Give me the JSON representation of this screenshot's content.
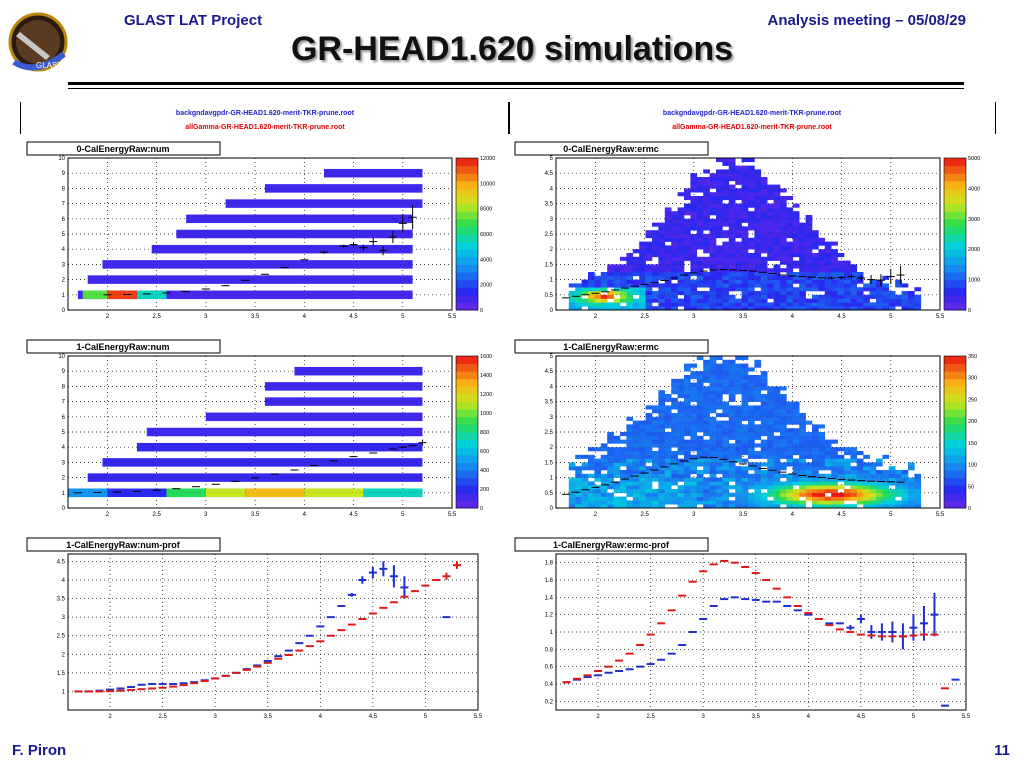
{
  "header": {
    "project": "GLAST LAT Project",
    "meeting": "Analysis meeting – 05/08/29",
    "title": "GR-HEAD1.620 simulations"
  },
  "footer": {
    "author": "F. Piron",
    "page": "11"
  },
  "logo": {
    "text": "GLAST"
  },
  "files": {
    "left_blue": "backgndavgpdr-GR-HEAD1.620-merit-TKR-prune.root",
    "left_red": "allGamma-GR-HEAD1.620-merit-TKR-prune.root",
    "right_blue": "backgndavgpdr-GR-HEAD1.620-merit-TKR-prune.root",
    "right_red": "allGamma-GR-HEAD1.620-merit-TKR-prune.root"
  },
  "colors": {
    "blue": "#1f2fd0",
    "red": "#e01818",
    "black": "#000000"
  },
  "chart_data": [
    {
      "type": "heatmap",
      "title": "0-CalEnergyRaw:num",
      "xlim": [
        1.6,
        5.5
      ],
      "ylim": [
        0,
        10
      ],
      "xticks": [
        "2",
        "2.5",
        "3",
        "3.5",
        "4",
        "4.5",
        "5",
        "5.5"
      ],
      "yticks": [
        "0",
        "1",
        "2",
        "3",
        "4",
        "5",
        "6",
        "7",
        "8",
        "9",
        "10"
      ],
      "z_ticks": [
        "0",
        "2000",
        "4000",
        "6000",
        "8000",
        "10000",
        "12000"
      ],
      "zmax": 12000,
      "rows": [
        {
          "y": 1,
          "x0": 1.7,
          "x1": 5.1,
          "level": 0.07,
          "hot": [
            [
              1.75,
              2.0,
              0.6
            ],
            [
              2.0,
              2.3,
              0.95
            ],
            [
              2.3,
              2.6,
              0.45
            ]
          ]
        },
        {
          "y": 2,
          "x0": 1.8,
          "x1": 5.1,
          "level": 0.08
        },
        {
          "y": 3,
          "x0": 1.95,
          "x1": 5.1,
          "level": 0.08
        },
        {
          "y": 4,
          "x0": 2.45,
          "x1": 5.1,
          "level": 0.08
        },
        {
          "y": 5,
          "x0": 2.7,
          "x1": 5.1,
          "level": 0.08
        },
        {
          "y": 6,
          "x0": 2.8,
          "x1": 5.1,
          "level": 0.08
        },
        {
          "y": 7,
          "x0": 3.2,
          "x1": 5.2,
          "level": 0.08
        },
        {
          "y": 8,
          "x0": 3.6,
          "x1": 5.2,
          "level": 0.08
        },
        {
          "y": 9,
          "x0": 4.2,
          "x1": 5.2,
          "level": 0.08
        }
      ],
      "profile": {
        "x": [
          2.0,
          2.2,
          2.4,
          2.6,
          2.8,
          3.0,
          3.2,
          3.4,
          3.6,
          3.8,
          4.0,
          4.2,
          4.4,
          4.5,
          4.6,
          4.7,
          4.8,
          4.9,
          5.0,
          5.1
        ],
        "y": [
          1.0,
          1.02,
          1.06,
          1.12,
          1.22,
          1.38,
          1.6,
          1.95,
          2.35,
          2.8,
          3.3,
          3.8,
          4.2,
          4.3,
          4.1,
          4.5,
          3.9,
          4.8,
          5.7,
          6.1
        ],
        "err": [
          0,
          0,
          0,
          0,
          0,
          0,
          0,
          0,
          0,
          0,
          0,
          0.1,
          0.1,
          0.15,
          0.2,
          0.25,
          0.3,
          0.4,
          0.6,
          0.8
        ]
      }
    },
    {
      "type": "heatmap",
      "title": "0-CalEnergyRaw:ermc",
      "xlim": [
        1.6,
        5.5
      ],
      "ylim": [
        0,
        5
      ],
      "xticks": [
        "2",
        "2.5",
        "3",
        "3.5",
        "4",
        "4.5",
        "5",
        "5.5"
      ],
      "yticks": [
        "0",
        "0.5",
        "1",
        "1.5",
        "2",
        "2.5",
        "3",
        "3.5",
        "4",
        "4.5",
        "5"
      ],
      "z_ticks": [
        "0",
        "1000",
        "2000",
        "3000",
        "4000",
        "5000"
      ],
      "zmax": 5000,
      "profile": {
        "x": [
          1.7,
          1.8,
          1.9,
          2.0,
          2.1,
          2.2,
          2.3,
          2.4,
          2.5,
          2.6,
          2.7,
          2.8,
          2.9,
          3.0,
          3.1,
          3.2,
          3.3,
          3.4,
          3.5,
          3.6,
          3.7,
          3.8,
          3.9,
          4.0,
          4.1,
          4.2,
          4.3,
          4.4,
          4.5,
          4.6,
          4.7,
          4.8,
          4.9,
          5.0,
          5.1
        ],
        "y": [
          0.4,
          0.45,
          0.5,
          0.55,
          0.6,
          0.66,
          0.72,
          0.78,
          0.84,
          0.9,
          0.97,
          1.05,
          1.15,
          1.22,
          1.28,
          1.32,
          1.33,
          1.32,
          1.3,
          1.28,
          1.24,
          1.2,
          1.15,
          1.12,
          1.1,
          1.08,
          1.06,
          1.05,
          1.07,
          1.1,
          1.05,
          1.0,
          0.98,
          1.1,
          1.15
        ],
        "err": [
          0,
          0,
          0,
          0,
          0,
          0,
          0,
          0,
          0,
          0,
          0,
          0,
          0,
          0,
          0,
          0,
          0,
          0,
          0,
          0,
          0,
          0,
          0,
          0,
          0,
          0,
          0,
          0.05,
          0.05,
          0.08,
          0.1,
          0.15,
          0.2,
          0.25,
          0.3
        ]
      }
    },
    {
      "type": "heatmap",
      "title": "1-CalEnergyRaw:num",
      "xlim": [
        1.6,
        5.5
      ],
      "ylim": [
        0,
        10
      ],
      "xticks": [
        "2",
        "2.5",
        "3",
        "3.5",
        "4",
        "4.5",
        "5",
        "5.5"
      ],
      "yticks": [
        "0",
        "1",
        "2",
        "3",
        "4",
        "5",
        "6",
        "7",
        "8",
        "9",
        "10"
      ],
      "z_ticks": [
        "0",
        "200",
        "400",
        "600",
        "800",
        "1000",
        "1200",
        "1400",
        "1600"
      ],
      "zmax": 1600,
      "rows": [
        {
          "y": 1,
          "x0": 1.6,
          "x1": 5.2,
          "level": 0.12,
          "hot": [
            [
              1.6,
              2.0,
              0.3
            ],
            [
              2.6,
              3.0,
              0.55
            ],
            [
              3.0,
              3.4,
              0.7
            ],
            [
              3.4,
              4.0,
              0.8
            ],
            [
              4.0,
              4.6,
              0.7
            ],
            [
              4.6,
              5.2,
              0.45
            ]
          ]
        },
        {
          "y": 2,
          "x0": 1.8,
          "x1": 5.2,
          "level": 0.1
        },
        {
          "y": 3,
          "x0": 1.95,
          "x1": 5.2,
          "level": 0.1
        },
        {
          "y": 4,
          "x0": 2.3,
          "x1": 5.2,
          "level": 0.1
        },
        {
          "y": 5,
          "x0": 2.4,
          "x1": 5.2,
          "level": 0.08
        },
        {
          "y": 6,
          "x0": 3.0,
          "x1": 5.2,
          "level": 0.08
        },
        {
          "y": 7,
          "x0": 3.6,
          "x1": 5.2,
          "level": 0.08
        },
        {
          "y": 8,
          "x0": 3.6,
          "x1": 5.2,
          "level": 0.08
        },
        {
          "y": 9,
          "x0": 3.9,
          "x1": 5.2,
          "level": 0.08
        }
      ],
      "profile": {
        "x": [
          1.7,
          1.9,
          2.1,
          2.3,
          2.5,
          2.7,
          2.9,
          3.1,
          3.3,
          3.5,
          3.7,
          3.9,
          4.1,
          4.3,
          4.5,
          4.7,
          4.9,
          5.0,
          5.1,
          5.2
        ],
        "y": [
          1.0,
          1.02,
          1.05,
          1.1,
          1.17,
          1.27,
          1.4,
          1.56,
          1.75,
          1.98,
          2.23,
          2.5,
          2.8,
          3.1,
          3.38,
          3.62,
          3.88,
          4.0,
          4.1,
          4.3
        ],
        "err": [
          0,
          0,
          0,
          0,
          0,
          0,
          0,
          0,
          0,
          0,
          0,
          0,
          0,
          0,
          0,
          0,
          0,
          0,
          0,
          0.2
        ]
      }
    },
    {
      "type": "heatmap",
      "title": "1-CalEnergyRaw:ermc",
      "xlim": [
        1.6,
        5.5
      ],
      "ylim": [
        0,
        5
      ],
      "xticks": [
        "2",
        "2.5",
        "3",
        "3.5",
        "4",
        "4.5",
        "5",
        "5.5"
      ],
      "yticks": [
        "0",
        "0.5",
        "1",
        "1.5",
        "2",
        "2.5",
        "3",
        "3.5",
        "4",
        "4.5",
        "5"
      ],
      "z_ticks": [
        "0",
        "50",
        "100",
        "150",
        "200",
        "250",
        "300",
        "350"
      ],
      "zmax": 350,
      "profile": {
        "x": [
          1.7,
          1.8,
          1.9,
          2.0,
          2.1,
          2.2,
          2.3,
          2.4,
          2.5,
          2.6,
          2.7,
          2.8,
          2.9,
          3.0,
          3.1,
          3.2,
          3.3,
          3.4,
          3.5,
          3.6,
          3.7,
          3.8,
          3.9,
          4.0,
          4.1,
          4.2,
          4.3,
          4.4,
          4.5,
          4.6,
          4.7,
          4.8,
          4.9,
          5.0,
          5.1
        ],
        "y": [
          0.45,
          0.52,
          0.6,
          0.68,
          0.76,
          0.85,
          0.95,
          1.05,
          1.15,
          1.25,
          1.35,
          1.45,
          1.55,
          1.62,
          1.67,
          1.66,
          1.6,
          1.52,
          1.45,
          1.38,
          1.3,
          1.24,
          1.18,
          1.12,
          1.07,
          1.03,
          1.0,
          0.97,
          0.94,
          0.92,
          0.9,
          0.88,
          0.87,
          0.86,
          0.85
        ],
        "err": [
          0,
          0,
          0,
          0,
          0,
          0,
          0,
          0,
          0,
          0,
          0,
          0,
          0,
          0,
          0,
          0,
          0,
          0,
          0,
          0,
          0,
          0,
          0,
          0,
          0,
          0,
          0,
          0,
          0,
          0,
          0,
          0,
          0,
          0,
          0
        ]
      }
    },
    {
      "type": "line",
      "title": "1-CalEnergyRaw:num-prof",
      "xlim": [
        1.6,
        5.5
      ],
      "ylim": [
        0.5,
        4.7
      ],
      "xticks": [
        "2",
        "2.5",
        "3",
        "3.5",
        "4",
        "4.5",
        "5",
        "5.5"
      ],
      "yticks": [
        "1",
        "1.5",
        "2",
        "2.5",
        "3",
        "3.5",
        "4",
        "4.5"
      ],
      "series": [
        {
          "color": "blue",
          "x": [
            1.7,
            1.8,
            1.9,
            2.0,
            2.1,
            2.2,
            2.3,
            2.4,
            2.5,
            2.6,
            2.7,
            2.8,
            2.9,
            3.0,
            3.1,
            3.2,
            3.3,
            3.4,
            3.5,
            3.6,
            3.7,
            3.8,
            3.9,
            4.0,
            4.1,
            4.2,
            4.3,
            4.4,
            4.5,
            4.6,
            4.7,
            4.8,
            5.2
          ],
          "y": [
            1.0,
            1.0,
            1.02,
            1.05,
            1.08,
            1.12,
            1.18,
            1.2,
            1.2,
            1.2,
            1.22,
            1.25,
            1.3,
            1.35,
            1.42,
            1.5,
            1.6,
            1.7,
            1.82,
            1.95,
            2.1,
            2.3,
            2.5,
            2.75,
            3.0,
            3.3,
            3.6,
            4.0,
            4.2,
            4.3,
            4.1,
            3.8,
            3.0
          ],
          "err": [
            0,
            0,
            0,
            0,
            0,
            0,
            0,
            0,
            0,
            0,
            0,
            0,
            0,
            0,
            0,
            0,
            0,
            0,
            0,
            0,
            0,
            0,
            0,
            0,
            0,
            0,
            0.05,
            0.1,
            0.15,
            0.2,
            0.3,
            0.3,
            0
          ]
        },
        {
          "color": "red",
          "x": [
            1.7,
            1.8,
            1.9,
            2.0,
            2.1,
            2.2,
            2.3,
            2.4,
            2.5,
            2.6,
            2.7,
            2.8,
            2.9,
            3.0,
            3.1,
            3.2,
            3.3,
            3.4,
            3.5,
            3.6,
            3.7,
            3.8,
            3.9,
            4.0,
            4.1,
            4.2,
            4.3,
            4.4,
            4.5,
            4.6,
            4.7,
            4.8,
            4.9,
            5.0,
            5.1,
            5.2,
            5.3
          ],
          "y": [
            1.0,
            1.0,
            1.0,
            1.01,
            1.02,
            1.04,
            1.06,
            1.08,
            1.1,
            1.13,
            1.17,
            1.22,
            1.28,
            1.35,
            1.42,
            1.5,
            1.58,
            1.67,
            1.77,
            1.88,
            1.98,
            2.1,
            2.22,
            2.35,
            2.5,
            2.65,
            2.8,
            2.95,
            3.1,
            3.25,
            3.4,
            3.55,
            3.7,
            3.85,
            4.0,
            4.1,
            4.4
          ],
          "err": [
            0,
            0,
            0,
            0,
            0,
            0,
            0,
            0,
            0,
            0,
            0,
            0,
            0,
            0,
            0,
            0,
            0,
            0,
            0,
            0,
            0,
            0,
            0,
            0,
            0,
            0,
            0,
            0,
            0,
            0,
            0,
            0,
            0,
            0,
            0,
            0.1,
            0.1
          ]
        }
      ]
    },
    {
      "type": "line",
      "title": "1-CalEnergyRaw:ermc-prof",
      "xlim": [
        1.6,
        5.5
      ],
      "ylim": [
        0.1,
        1.9
      ],
      "xticks": [
        "2",
        "2.5",
        "3",
        "3.5",
        "4",
        "4.5",
        "5",
        "5.5"
      ],
      "yticks": [
        "0.2",
        "0.4",
        "0.6",
        "0.8",
        "1",
        "1.2",
        "1.4",
        "1.6",
        "1.8"
      ],
      "series": [
        {
          "color": "blue",
          "x": [
            1.7,
            1.8,
            1.9,
            2.0,
            2.1,
            2.2,
            2.3,
            2.4,
            2.5,
            2.6,
            2.7,
            2.8,
            2.9,
            3.0,
            3.1,
            3.2,
            3.3,
            3.4,
            3.5,
            3.6,
            3.7,
            3.8,
            3.9,
            4.0,
            4.1,
            4.2,
            4.3,
            4.4,
            4.5,
            4.6,
            4.7,
            4.8,
            4.9,
            5.0,
            5.1,
            5.2,
            5.3,
            5.4
          ],
          "y": [
            0.42,
            0.45,
            0.48,
            0.5,
            0.53,
            0.55,
            0.57,
            0.6,
            0.63,
            0.68,
            0.75,
            0.85,
            1.0,
            1.15,
            1.3,
            1.38,
            1.4,
            1.38,
            1.37,
            1.35,
            1.35,
            1.3,
            1.25,
            1.2,
            1.15,
            1.1,
            1.1,
            1.05,
            1.15,
            1.0,
            1.0,
            1.0,
            0.95,
            1.05,
            1.1,
            1.2,
            0.15,
            0.45
          ],
          "err": [
            0,
            0,
            0,
            0,
            0,
            0,
            0,
            0,
            0,
            0,
            0,
            0,
            0,
            0,
            0,
            0,
            0,
            0,
            0,
            0,
            0,
            0,
            0,
            0,
            0,
            0,
            0,
            0.03,
            0.05,
            0.08,
            0.1,
            0.12,
            0.15,
            0.15,
            0.2,
            0.25,
            0,
            0
          ]
        },
        {
          "color": "red",
          "x": [
            1.7,
            1.8,
            1.9,
            2.0,
            2.1,
            2.2,
            2.3,
            2.4,
            2.5,
            2.6,
            2.7,
            2.8,
            2.9,
            3.0,
            3.1,
            3.2,
            3.3,
            3.4,
            3.5,
            3.6,
            3.7,
            3.8,
            3.9,
            4.0,
            4.1,
            4.2,
            4.3,
            4.4,
            4.5,
            4.6,
            4.7,
            4.8,
            4.9,
            5.0,
            5.1,
            5.2,
            5.3
          ],
          "y": [
            0.42,
            0.46,
            0.5,
            0.55,
            0.6,
            0.67,
            0.75,
            0.85,
            0.97,
            1.1,
            1.25,
            1.42,
            1.58,
            1.7,
            1.78,
            1.82,
            1.8,
            1.75,
            1.68,
            1.6,
            1.5,
            1.4,
            1.3,
            1.22,
            1.15,
            1.08,
            1.03,
            1.0,
            0.97,
            0.96,
            0.95,
            0.95,
            0.95,
            0.96,
            0.97,
            0.97,
            0.35
          ],
          "err": [
            0,
            0,
            0,
            0,
            0,
            0,
            0,
            0,
            0,
            0,
            0,
            0,
            0,
            0,
            0,
            0,
            0,
            0,
            0,
            0,
            0,
            0,
            0,
            0,
            0,
            0,
            0,
            0,
            0,
            0,
            0,
            0,
            0,
            0,
            0,
            0,
            0
          ]
        }
      ]
    }
  ]
}
